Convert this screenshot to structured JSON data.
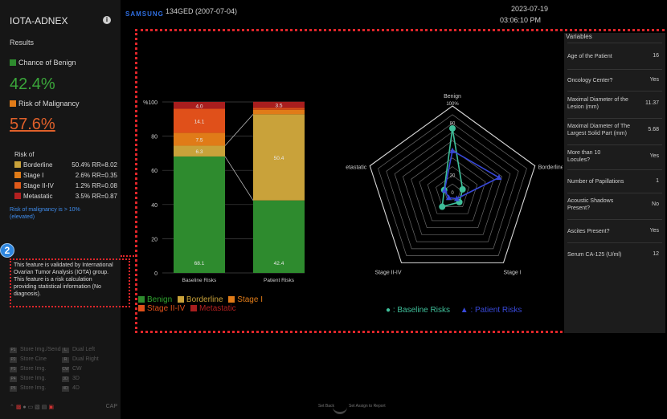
{
  "sidebar": {
    "title": "IOTA-ADNEX",
    "results_heading": "Results",
    "benign_label": "Chance of Benign",
    "benign_value": "42.4%",
    "malignancy_label": "Risk of Malignancy",
    "malignancy_value": "57.6%",
    "risk_of_label": "Risk of",
    "risks": [
      {
        "name": "Borderline",
        "value": "50.4% RR=8.02",
        "color": "#c9a23a"
      },
      {
        "name": "Stage I",
        "value": "2.6% RR=0.35",
        "color": "#e07b18"
      },
      {
        "name": "Stage II-IV",
        "value": "1.2% RR=0.08",
        "color": "#e05a1a"
      },
      {
        "name": "Metastatic",
        "value": "3.5% RR=0.87",
        "color": "#b32020"
      }
    ],
    "note": "Risk of malignancy is > 10% (elevated)",
    "badge": "2",
    "disclaimer": "This feature is validated by International Ovarian Tumor Analysis (IOTA) group. This feature is a risk calculation providing statistical information (No diagnosis).",
    "menu": [
      {
        "key": "P1",
        "label": "Store Img./Send",
        "key2": "L",
        "label2": "Dual Left"
      },
      {
        "key": "P2",
        "label": "Store Cine",
        "key2": "R",
        "label2": "Dual Right"
      },
      {
        "key": "P3",
        "label": "Store Img.",
        "key2": "CW",
        "label2": "CW"
      },
      {
        "key": "P4",
        "label": "Store Img.",
        "key2": "3D",
        "label2": "3D"
      },
      {
        "key": "P5",
        "label": "Store Img.",
        "key2": "4D",
        "label2": "4D"
      }
    ],
    "tray_text": "CAP"
  },
  "header": {
    "brand": "SAMSUNG",
    "patient": "134GED (2007-07-04)",
    "date": "2023-07-19",
    "time": "03:06:10 PM"
  },
  "colors": {
    "benign": "#2e8b2e",
    "borderline": "#c9a23a",
    "stage1": "#e07b18",
    "stage2_4": "#e0501a",
    "metastatic": "#a81e1e",
    "baseline": "#3fbf9a",
    "patient": "#3848d8"
  },
  "legend": {
    "benign": "Benign",
    "borderline": "Borderline",
    "stage1": "Stage I",
    "stage2_4": "Stage II-IV",
    "metastatic": "Metastatic",
    "baseline": ": Baseline Risks",
    "patient": ": Patient Risks"
  },
  "chart_data": [
    {
      "type": "bar",
      "stacked": true,
      "categories": [
        "Baseline Risks",
        "Patient Risks"
      ],
      "series": [
        {
          "name": "Benign",
          "values": [
            68.1,
            42.4
          ]
        },
        {
          "name": "Borderline",
          "values": [
            6.3,
            50.4
          ]
        },
        {
          "name": "Stage I",
          "values": [
            7.5,
            2.6
          ]
        },
        {
          "name": "Stage II-IV",
          "values": [
            14.1,
            1.2
          ]
        },
        {
          "name": "Metastatic",
          "values": [
            4.0,
            3.5
          ]
        }
      ],
      "data_labels": [
        [
          "68.1",
          "6.3",
          "7.5",
          "14.1",
          "4.0"
        ],
        [
          "42.4",
          "50.4",
          "",
          "",
          "3.5"
        ]
      ],
      "yticks": [
        "%100",
        "80",
        "60",
        "40",
        "20",
        "0"
      ],
      "ylim": [
        0,
        100
      ],
      "grid": true
    },
    {
      "type": "radar",
      "axes": [
        "Benign",
        "Borderline",
        "Stage I",
        "Stage II-IV",
        "Metastatic"
      ],
      "axis_sub": "100%",
      "ring_labels": [
        "80",
        "20",
        "0"
      ],
      "series": [
        {
          "name": "Baseline Risks",
          "values": [
            68.1,
            6.3,
            7.5,
            14.1,
            4.0
          ]
        },
        {
          "name": "Patient Risks",
          "values": [
            42.4,
            50.4,
            2.6,
            1.2,
            3.5
          ]
        }
      ]
    }
  ],
  "variables": {
    "title": "Variables",
    "rows": [
      {
        "label": "Age of the Patient",
        "value": "16"
      },
      {
        "label": "Oncology Center?",
        "value": "Yes"
      },
      {
        "label": "Maximal Diameter of the Lesion (mm)",
        "value": "11.37"
      },
      {
        "label": "Maximal Diameter of The Largest Solid Part (mm)",
        "value": "5.68"
      },
      {
        "label": "More than 10 Locules?",
        "value": "Yes"
      },
      {
        "label": "Number of Papillations",
        "value": "1"
      },
      {
        "label": "Acoustic Shadows Present?",
        "value": "No"
      },
      {
        "label": "Ascites Present?",
        "value": "Yes"
      },
      {
        "label": "Serum CA-125 (U/ml)",
        "value": "12"
      }
    ]
  },
  "footer": {
    "set_back": "Set Back",
    "set_assign": "Set Assign to Report"
  }
}
